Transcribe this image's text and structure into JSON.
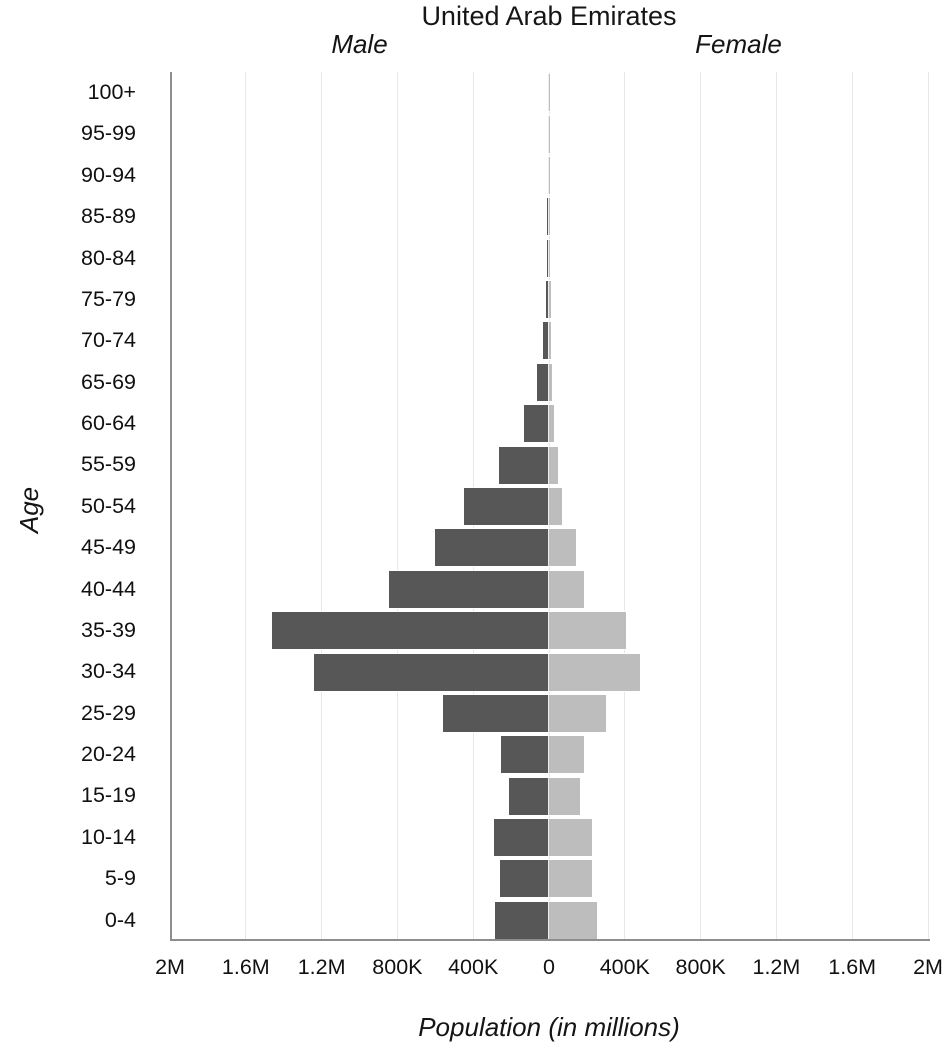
{
  "chart_data": {
    "type": "bar",
    "subtype": "population-pyramid",
    "title": "United Arab Emirates",
    "left_side_label": "Male",
    "right_side_label": "Female",
    "ylabel": "Age",
    "xlabel": "Population (in millions)",
    "legend_position": "top",
    "grid": "vertical-only",
    "categories_top_to_bottom": [
      "100+",
      "95-99",
      "90-94",
      "85-89",
      "80-84",
      "75-79",
      "70-74",
      "65-69",
      "60-64",
      "55-59",
      "50-54",
      "45-49",
      "40-44",
      "35-39",
      "30-34",
      "25-29",
      "20-24",
      "15-19",
      "10-14",
      "5-9",
      "0-4"
    ],
    "series": [
      {
        "name": "Male",
        "side": "left",
        "color": "#575757",
        "values_thousands": [
          5,
          6,
          7,
          9,
          11,
          16,
          32,
          63,
          130,
          265,
          450,
          600,
          845,
          1460,
          1240,
          560,
          255,
          213,
          289,
          259,
          283
        ]
      },
      {
        "name": "Female",
        "side": "right",
        "color": "#bdbdbd",
        "values_thousands": [
          3,
          4,
          5,
          6,
          7,
          8,
          10,
          16,
          28,
          45,
          68,
          141,
          185,
          405,
          480,
          300,
          185,
          163,
          226,
          226,
          251
        ]
      }
    ],
    "x_axis": {
      "tick_labels": [
        "2M",
        "1.6M",
        "1.2M",
        "800K",
        "400K",
        "0",
        "400K",
        "800K",
        "1.2M",
        "1.6M",
        "2M"
      ],
      "max_each_side": 2000000,
      "tick_step": 400000
    }
  },
  "colors": {
    "male_bar": "#575757",
    "female_bar": "#bdbdbd",
    "gridline": "#e7e7e7",
    "axis_line": "#8e8e8e",
    "text": "#141414",
    "background": "#ffffff"
  }
}
